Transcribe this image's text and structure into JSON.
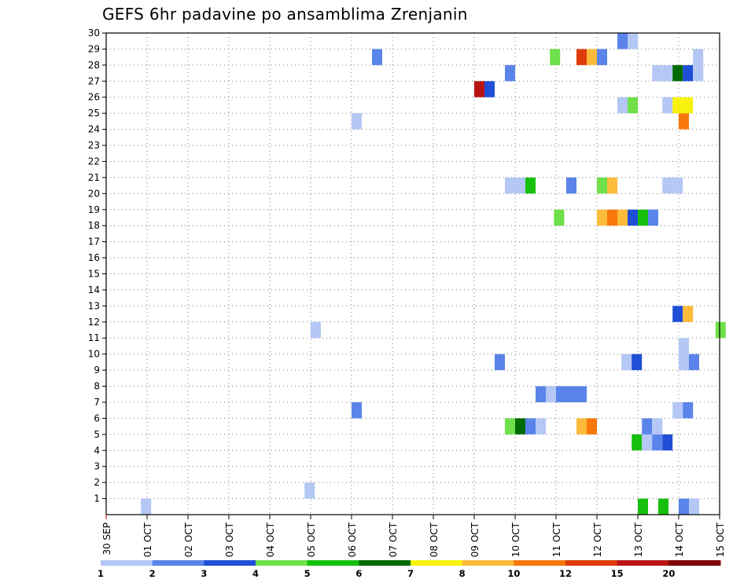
{
  "title": "GEFS 6hr padavine po ansamblima Zrenjanin",
  "chart_data": {
    "type": "heatmap",
    "title": "GEFS 6hr padavine po ansamblima Zrenjanin",
    "xlabel": "",
    "ylabel": "",
    "x_tick_labels": [
      "30 SEP",
      "01 OCT",
      "02 OCT",
      "03 OCT",
      "04 OCT",
      "05 OCT",
      "06 OCT",
      "07 OCT",
      "08 OCT",
      "09 OCT",
      "10 OCT",
      "11 OCT",
      "12 OCT",
      "13 OCT",
      "14 OCT",
      "15 OCT"
    ],
    "xlim_days": [
      0,
      15
    ],
    "y_tick_labels": [
      "1",
      "2",
      "3",
      "4",
      "5",
      "6",
      "7",
      "8",
      "9",
      "10",
      "11",
      "12",
      "13",
      "14",
      "15",
      "16",
      "17",
      "18",
      "19",
      "20",
      "21",
      "22",
      "23",
      "24",
      "25",
      "26",
      "27",
      "28",
      "29",
      "30"
    ],
    "ylim": [
      0,
      30
    ],
    "grid": true,
    "colorbar": {
      "labels": [
        "1",
        "2",
        "3",
        "4",
        "5",
        "6",
        "7",
        "8",
        "10",
        "12",
        "15",
        "20"
      ],
      "colors": [
        "#b4c7f5",
        "#5a84ea",
        "#1f4fd6",
        "#6fe04a",
        "#18c00e",
        "#026b02",
        "#f8f20a",
        "#fcbb3a",
        "#f8780a",
        "#de3c0a",
        "#b81414",
        "#7e0404"
      ]
    },
    "cells": [
      {
        "t": 0.85,
        "m": 0,
        "c": 0
      },
      {
        "t": 13.0,
        "m": 0,
        "c": 4
      },
      {
        "t": 13.5,
        "m": 0,
        "c": 4
      },
      {
        "t": 14.0,
        "m": 0,
        "c": 1
      },
      {
        "t": 14.25,
        "m": 0,
        "c": 0
      },
      {
        "t": 4.85,
        "m": 1,
        "c": 0
      },
      {
        "t": 12.85,
        "m": 4,
        "c": 4
      },
      {
        "t": 13.1,
        "m": 4,
        "c": 0
      },
      {
        "t": 13.35,
        "m": 4,
        "c": 1
      },
      {
        "t": 13.6,
        "m": 4,
        "c": 2
      },
      {
        "t": 9.75,
        "m": 5,
        "c": 3
      },
      {
        "t": 10.0,
        "m": 5,
        "c": 5
      },
      {
        "t": 10.25,
        "m": 5,
        "c": 1
      },
      {
        "t": 10.5,
        "m": 5,
        "c": 0
      },
      {
        "t": 11.5,
        "m": 5,
        "c": 7
      },
      {
        "t": 11.75,
        "m": 5,
        "c": 8
      },
      {
        "t": 13.1,
        "m": 5,
        "c": 1
      },
      {
        "t": 13.35,
        "m": 5,
        "c": 0
      },
      {
        "t": 6.0,
        "m": 6,
        "c": 1
      },
      {
        "t": 13.85,
        "m": 6,
        "c": 0
      },
      {
        "t": 14.1,
        "m": 6,
        "c": 1
      },
      {
        "t": 10.5,
        "m": 7,
        "c": 1
      },
      {
        "t": 10.75,
        "m": 7,
        "c": 0
      },
      {
        "t": 11.0,
        "m": 7,
        "c": 1
      },
      {
        "t": 11.25,
        "m": 7,
        "c": 1
      },
      {
        "t": 11.5,
        "m": 7,
        "c": 1
      },
      {
        "t": 9.5,
        "m": 9,
        "c": 1
      },
      {
        "t": 12.6,
        "m": 9,
        "c": 0
      },
      {
        "t": 12.85,
        "m": 9,
        "c": 2
      },
      {
        "t": 14.0,
        "m": 9,
        "c": 0
      },
      {
        "t": 14.25,
        "m": 9,
        "c": 1
      },
      {
        "t": 14.0,
        "m": 10,
        "c": 0
      },
      {
        "t": 5.0,
        "m": 11,
        "c": 0
      },
      {
        "t": 14.9,
        "m": 11,
        "c": 3
      },
      {
        "t": 13.85,
        "m": 12,
        "c": 2
      },
      {
        "t": 14.1,
        "m": 12,
        "c": 7
      },
      {
        "t": 10.95,
        "m": 18,
        "c": 3
      },
      {
        "t": 12.0,
        "m": 18,
        "c": 7
      },
      {
        "t": 12.25,
        "m": 18,
        "c": 8
      },
      {
        "t": 12.5,
        "m": 18,
        "c": 7
      },
      {
        "t": 12.75,
        "m": 18,
        "c": 2
      },
      {
        "t": 13.0,
        "m": 18,
        "c": 4
      },
      {
        "t": 13.25,
        "m": 18,
        "c": 1
      },
      {
        "t": 9.75,
        "m": 20,
        "c": 0
      },
      {
        "t": 10.0,
        "m": 20,
        "c": 0
      },
      {
        "t": 10.25,
        "m": 20,
        "c": 4
      },
      {
        "t": 11.25,
        "m": 20,
        "c": 1
      },
      {
        "t": 12.0,
        "m": 20,
        "c": 3
      },
      {
        "t": 12.25,
        "m": 20,
        "c": 7
      },
      {
        "t": 13.6,
        "m": 20,
        "c": 0
      },
      {
        "t": 13.85,
        "m": 20,
        "c": 0
      },
      {
        "t": 6.0,
        "m": 24,
        "c": 0
      },
      {
        "t": 14.0,
        "m": 24,
        "c": 8
      },
      {
        "t": 12.5,
        "m": 25,
        "c": 0
      },
      {
        "t": 12.75,
        "m": 25,
        "c": 3
      },
      {
        "t": 13.6,
        "m": 25,
        "c": 0
      },
      {
        "t": 13.85,
        "m": 25,
        "c": 6
      },
      {
        "t": 14.1,
        "m": 25,
        "c": 6
      },
      {
        "t": 9.0,
        "m": 26,
        "c": 10
      },
      {
        "t": 9.25,
        "m": 26,
        "c": 2
      },
      {
        "t": 9.75,
        "m": 27,
        "c": 1
      },
      {
        "t": 13.35,
        "m": 27,
        "c": 0
      },
      {
        "t": 13.6,
        "m": 27,
        "c": 0
      },
      {
        "t": 13.85,
        "m": 27,
        "c": 5
      },
      {
        "t": 14.1,
        "m": 27,
        "c": 2
      },
      {
        "t": 14.35,
        "m": 27,
        "c": 0
      },
      {
        "t": 6.5,
        "m": 28,
        "c": 1
      },
      {
        "t": 10.85,
        "m": 28,
        "c": 3
      },
      {
        "t": 11.5,
        "m": 28,
        "c": 9
      },
      {
        "t": 11.75,
        "m": 28,
        "c": 7
      },
      {
        "t": 12.0,
        "m": 28,
        "c": 1
      },
      {
        "t": 14.35,
        "m": 28,
        "c": 0
      },
      {
        "t": 12.5,
        "m": 29,
        "c": 1
      },
      {
        "t": 12.75,
        "m": 29,
        "c": 0
      }
    ]
  }
}
